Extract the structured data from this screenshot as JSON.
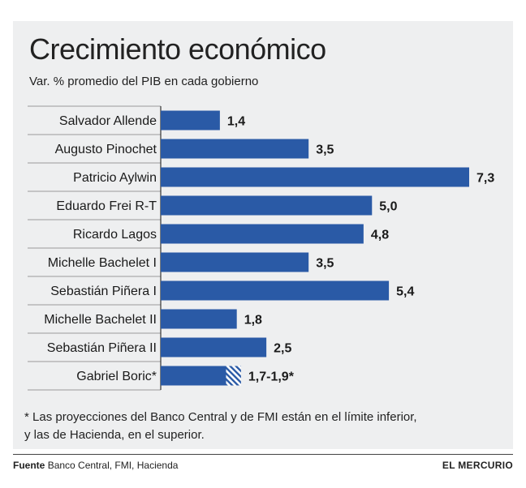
{
  "chart_data": {
    "type": "bar",
    "orientation": "horizontal",
    "title": "Crecimiento económico",
    "subtitle": "Var. % promedio del PIB en cada gobierno",
    "categories": [
      "Salvador Allende",
      "Augusto Pinochet",
      "Patricio Aylwin",
      "Eduardo Frei R-T",
      "Ricardo Lagos",
      "Michelle Bachelet I",
      "Sebastián Piñera I",
      "Michelle Bachelet II",
      "Sebastián Piñera II",
      "Gabriel Boric*"
    ],
    "values": [
      1.4,
      3.5,
      7.3,
      5.0,
      4.8,
      3.5,
      5.4,
      1.8,
      2.5,
      1.7
    ],
    "value_labels": [
      "1,4",
      "3,5",
      "7,3",
      "5,0",
      "4,8",
      "3,5",
      "5,4",
      "1,8",
      "2,5",
      "1,7-1,9*"
    ],
    "range_bar": {
      "index": 9,
      "low": 1.7,
      "high": 1.9
    },
    "xlim": [
      0,
      7.3
    ],
    "grid": false,
    "bar_color": "#2a5aa6",
    "hatch_color": "#2a5aa6"
  },
  "footnote": {
    "line1": "* Las proyecciones del Banco Central y de FMI están en el límite inferior,",
    "line2": "y las de Hacienda, en el superior."
  },
  "source": {
    "label": "Fuente",
    "text": "Banco Central, FMI, Hacienda"
  },
  "brand": "EL MERCURIO"
}
